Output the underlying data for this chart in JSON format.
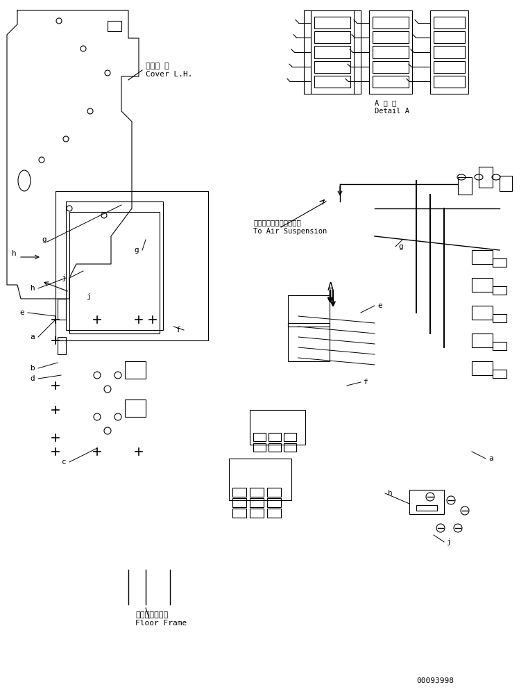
{
  "bg_color": "#ffffff",
  "line_color": "#000000",
  "fig_width": 7.61,
  "fig_height": 9.96,
  "dpi": 100,
  "part_number": "00093998",
  "detail_label_jp": "A 詳 細",
  "detail_label_en": "Detail A",
  "cover_label_jp": "カバー 左",
  "cover_label_en": "Cover L.H.",
  "air_label_jp": "エアーサスペンションへ",
  "air_label_en": "To Air Suspension",
  "floor_label_jp": "フロアフレーム",
  "floor_label_en": "Floor Frame"
}
